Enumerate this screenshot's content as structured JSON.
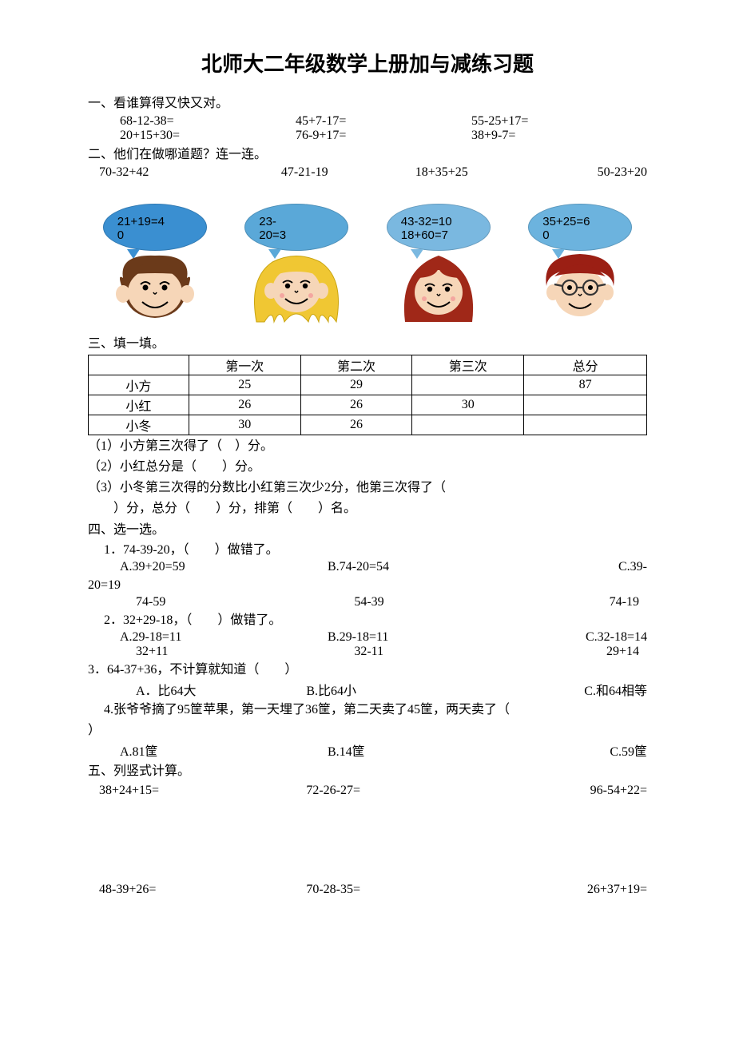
{
  "title": "北师大二年级数学上册加与减练习题",
  "s1": {
    "heading": "一、看谁算得又快又对。",
    "row1": {
      "a": "68-12-38=",
      "b": "45+7-17=",
      "c": "55-25+17="
    },
    "row2": {
      "a": "20+15+30=",
      "b": "76-9+17=",
      "c": "38+9-7="
    }
  },
  "s2": {
    "heading": "二、他们在做哪道题？连一连。",
    "row": {
      "a": "70-32+42",
      "b": "47-21-19",
      "c": "18+35+25",
      "d": "50-23+20"
    },
    "bubbles": [
      {
        "lines": [
          "21+19=4",
          "0"
        ],
        "bg": "#3a8fd1",
        "tail": "#3a8fd1"
      },
      {
        "lines": [
          "23-",
          "20=3"
        ],
        "bg": "#5aa8d8",
        "tail": "#5aa8d8"
      },
      {
        "lines": [
          "43-32=10",
          "18+60=7"
        ],
        "bg": "#7ab8e0",
        "tail": "#7ab8e0"
      },
      {
        "lines": [
          "35+25=6",
          "0"
        ],
        "bg": "#6cb3de",
        "tail": "#6cb3de"
      }
    ],
    "faces": {
      "skin": "#f6d6b8",
      "f1": {
        "hair": "#6b3a1a"
      },
      "f2": {
        "hair": "#f0c733"
      },
      "f3": {
        "hair": "#a02818"
      },
      "f4": {
        "hair": "#9b1f14",
        "glasses": "#333333"
      }
    }
  },
  "s3": {
    "heading": "三、填一填。",
    "headers": {
      "c0": "",
      "c1": "第一次",
      "c2": "第二次",
      "c3": "第三次",
      "c4": "总分"
    },
    "rows": [
      {
        "name": "小方",
        "c1": "25",
        "c2": "29",
        "c3": "",
        "c4": "87"
      },
      {
        "name": "小红",
        "c1": "26",
        "c2": "26",
        "c3": "30",
        "c4": ""
      },
      {
        "name": "小冬",
        "c1": "30",
        "c2": "26",
        "c3": "",
        "c4": ""
      }
    ],
    "q1": "（1）小方第三次得了（　）分。",
    "q2": "（2）小红总分是（　　）分。",
    "q3a": "（3）小冬第三次得的分数比小红第三次少2分，他第三次得了（",
    "q3b": "　　）分，总分（　　）分，排第（　　）名。"
  },
  "s4": {
    "heading": "四、选一选。",
    "q1": {
      "text": "1．74-39-20，（　　）做错了。",
      "a": "A.39+20=59",
      "b": "B.74-20=54",
      "c": "C.39-",
      "a2": "74-59",
      "b2": "54-39",
      "c2prefix": "20=19",
      "c2": "74-19"
    },
    "q2": {
      "text": "2．32+29-18，（　　）做错了。",
      "a": "A.29-18=11",
      "b": "B.29-18=11",
      "c": "C.32-18=14",
      "a2": "32+11",
      "b2": "32-11",
      "c2": "29+14"
    },
    "q3": {
      "text": "3．64-37+36，不计算就知道（　　）",
      "a": "A．比64大",
      "b": "B.比64小",
      "c": "C.和64相等"
    },
    "q4": {
      "text1": "4.张爷爷摘了95筐苹果，第一天埋了36筐，第二天卖了45筐，两天卖了（",
      "text2": "）",
      "a": "A.81筐",
      "b": "B.14筐",
      "c": "C.59筐"
    }
  },
  "s5": {
    "heading": "五、列竖式计算。",
    "row1": {
      "a": "38+24+15=",
      "b": "72-26-27=",
      "c": "96-54+22="
    },
    "row2": {
      "a": "48-39+26=",
      "b": "70-28-35=",
      "c": "26+37+19="
    }
  }
}
